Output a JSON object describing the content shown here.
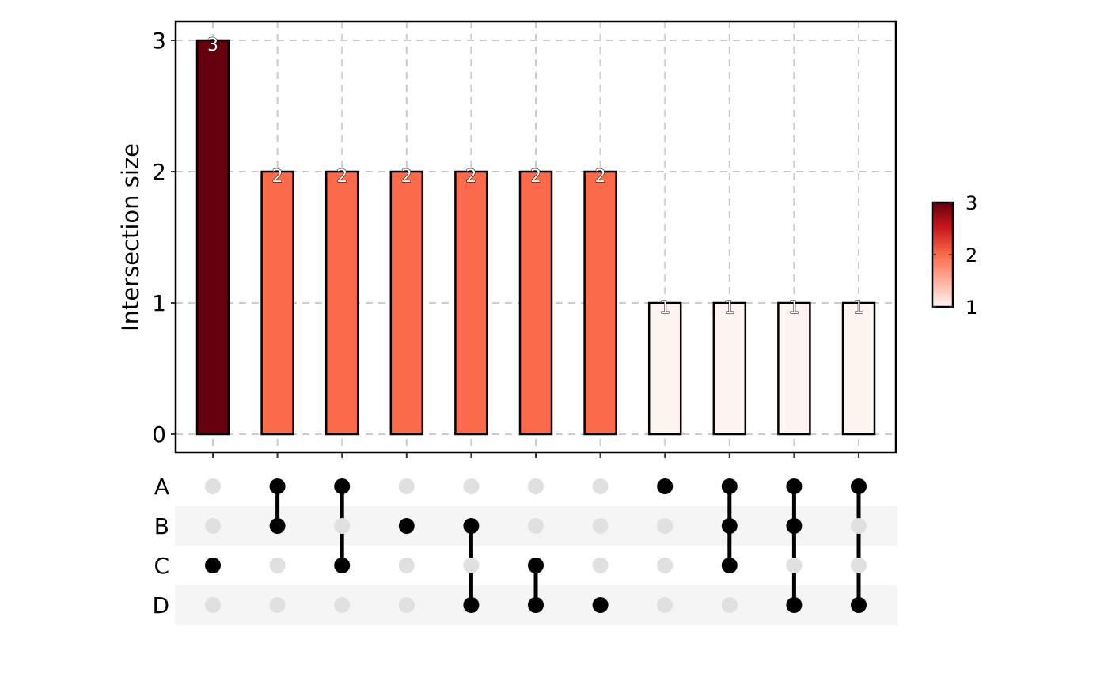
{
  "chart_data": {
    "type": "upset",
    "ylabel": "Intersection size",
    "ylim": [
      0,
      3
    ],
    "yticks": [
      "0",
      "1",
      "2",
      "3"
    ],
    "grid": true,
    "sets": [
      "A",
      "B",
      "C",
      "D"
    ],
    "intersections": [
      {
        "sets": [
          "C"
        ],
        "value": 3,
        "label": "3"
      },
      {
        "sets": [
          "A",
          "B"
        ],
        "value": 2,
        "label": "2"
      },
      {
        "sets": [
          "A",
          "C"
        ],
        "value": 2,
        "label": "2"
      },
      {
        "sets": [
          "B"
        ],
        "value": 2,
        "label": "2"
      },
      {
        "sets": [
          "B",
          "D"
        ],
        "value": 2,
        "label": "2"
      },
      {
        "sets": [
          "C",
          "D"
        ],
        "value": 2,
        "label": "2"
      },
      {
        "sets": [
          "D"
        ],
        "value": 2,
        "label": "2"
      },
      {
        "sets": [
          "A"
        ],
        "value": 1,
        "label": "1"
      },
      {
        "sets": [
          "A",
          "B",
          "C"
        ],
        "value": 1,
        "label": "1"
      },
      {
        "sets": [
          "A",
          "B",
          "D"
        ],
        "value": 1,
        "label": "1"
      },
      {
        "sets": [
          "A",
          "D"
        ],
        "value": 1,
        "label": "1"
      }
    ],
    "colorscale": {
      "min": 1,
      "max": 3,
      "colors": [
        "#FFF5F0",
        "#FB6A4A",
        "#67000D"
      ],
      "ticks": [
        "1",
        "2",
        "3"
      ]
    },
    "legend": "right"
  }
}
